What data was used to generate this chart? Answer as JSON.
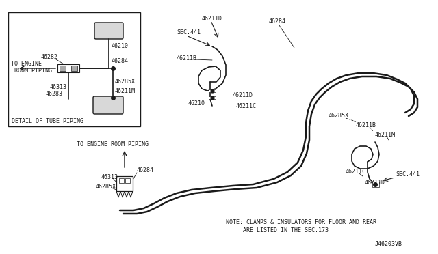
{
  "bg_color": "#ffffff",
  "line_color": "#1a1a1a",
  "fig_width": 6.4,
  "fig_height": 3.72,
  "title_code": "J46203VB",
  "note_line1": "NOTE: CLAMPS & INSULATORS FOR FLOOR AND REAR",
  "note_line2": "     ARE LISTED IN THE SEC.173",
  "detail_label": "DETAIL OF TUBE PIPING",
  "engine_label1": "TO ENGINE",
  "engine_label2": " ROOM PIPING",
  "engine_label_main": "TO ENGINE ROOM PIPING"
}
